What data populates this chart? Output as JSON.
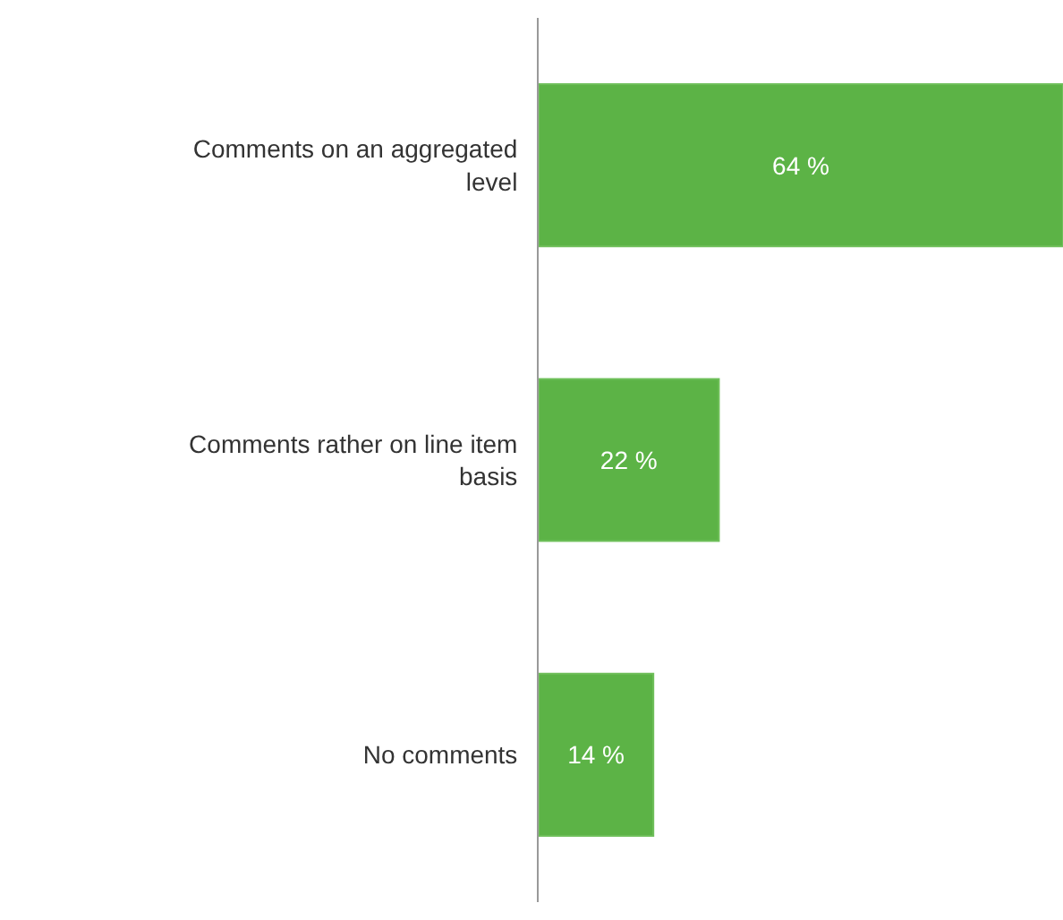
{
  "chart_data": {
    "type": "bar",
    "orientation": "horizontal",
    "categories": [
      "Comments on an aggregated level",
      "Comments rather on line item basis",
      "No comments"
    ],
    "values": [
      64,
      22,
      14
    ],
    "value_labels": [
      "64 %",
      "22 %",
      "14 %"
    ],
    "color": "#5cb346",
    "legend": false
  }
}
